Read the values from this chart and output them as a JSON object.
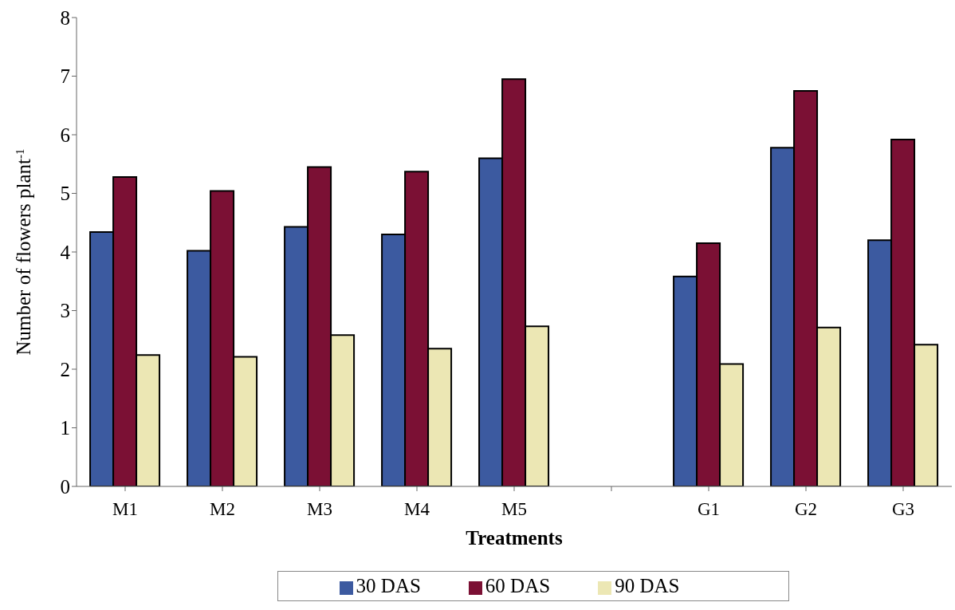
{
  "chart_data": {
    "type": "bar",
    "xlabel": "Treatments",
    "ylabel": "Number of flowers plant$^{-1}$",
    "categories": [
      "M1",
      "M2",
      "M3",
      "M4",
      "M5",
      null,
      "G1",
      "G2",
      "G3"
    ],
    "series": [
      {
        "name": "30 DAS",
        "color": "#3c5aa0",
        "values": [
          4.34,
          4.02,
          4.43,
          4.3,
          5.6,
          null,
          3.58,
          5.78,
          4.2
        ]
      },
      {
        "name": "60 DAS",
        "color": "#7b1034",
        "values": [
          5.28,
          5.04,
          5.45,
          5.37,
          6.95,
          null,
          4.15,
          6.75,
          5.92
        ]
      },
      {
        "name": "90 DAS",
        "color": "#ece7b4",
        "values": [
          2.24,
          2.21,
          2.58,
          2.35,
          2.73,
          null,
          2.09,
          2.71,
          2.42
        ]
      }
    ],
    "ylim": [
      0,
      8
    ],
    "yticks": [
      0,
      1,
      2,
      3,
      4,
      5,
      6,
      7,
      8
    ],
    "grid": false,
    "legend": "bottom"
  }
}
